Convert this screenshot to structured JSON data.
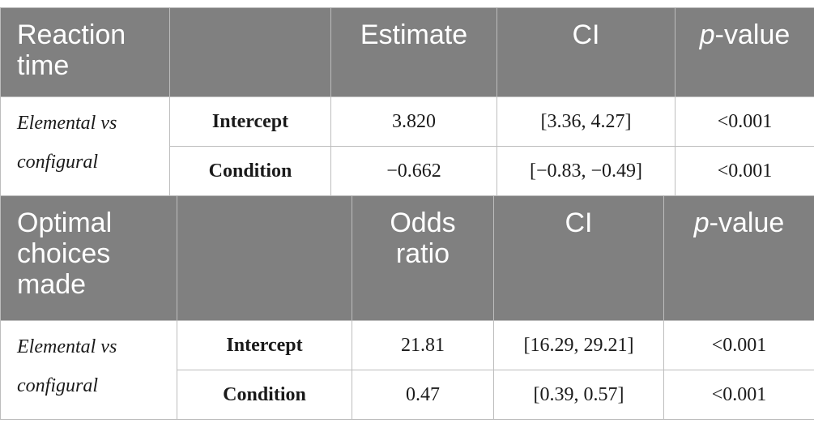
{
  "table1": {
    "title_line1": "Reaction",
    "title_line2": "time",
    "headers": {
      "blank": "",
      "estimate": "Estimate",
      "ci": "CI",
      "p_italic": "p",
      "p_rest": "-value"
    },
    "group_label_line1": "Elemental vs",
    "group_label_line2": "configural",
    "rows": [
      {
        "term": "Intercept",
        "estimate": "3.820",
        "ci": "[3.36, 4.27]",
        "p": "<0.001"
      },
      {
        "term": "Condition",
        "estimate": "−0.662",
        "ci": "[−0.83, −0.49]",
        "p": "<0.001"
      }
    ]
  },
  "table2": {
    "title_line1": "Optimal",
    "title_line2": "choices",
    "title_line3": "made",
    "headers": {
      "blank": "",
      "odds_line1": "Odds",
      "odds_line2": "ratio",
      "ci": "CI",
      "p_italic": "p",
      "p_rest": "-value"
    },
    "group_label_line1": "Elemental vs",
    "group_label_line2": "configural",
    "rows": [
      {
        "term": "Intercept",
        "estimate": "21.81",
        "ci": "[16.29, 29.21]",
        "p": "<0.001"
      },
      {
        "term": "Condition",
        "estimate": "0.47",
        "ci": "[0.39, 0.57]",
        "p": "<0.001"
      }
    ]
  }
}
